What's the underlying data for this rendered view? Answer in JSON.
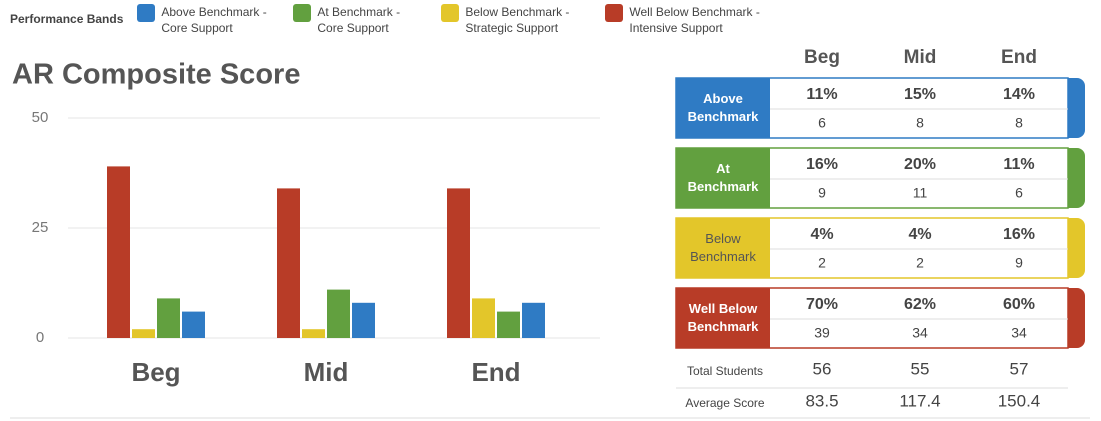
{
  "chart_data": {
    "type": "bar",
    "title": "AR Composite Score",
    "legend_title": "Performance Bands",
    "categories": [
      "Beg",
      "Mid",
      "End"
    ],
    "ylim": [
      0,
      50
    ],
    "yticks": [
      0,
      25,
      50
    ],
    "grid": true,
    "series": [
      {
        "name": "Above Benchmark - Core Support",
        "color": "#2f7bc4",
        "values": [
          6,
          8,
          8
        ]
      },
      {
        "name": "At Benchmark - Core Support",
        "color": "#62a03f",
        "values": [
          9,
          11,
          6
        ]
      },
      {
        "name": "Below Benchmark - Strategic Support",
        "color": "#e3c62a",
        "values": [
          2,
          2,
          9
        ]
      },
      {
        "name": "Well Below Benchmark - Intensive Support",
        "color": "#b83c27",
        "values": [
          39,
          34,
          34
        ]
      }
    ]
  },
  "table": {
    "rows": [
      {
        "label": "Above Benchmark",
        "percents": [
          "11%",
          "15%",
          "14%"
        ]
      },
      {
        "label": "At Benchmark",
        "percents": [
          "16%",
          "20%",
          "11%"
        ]
      },
      {
        "label": "Below Benchmark",
        "percents": [
          "4%",
          "4%",
          "16%"
        ]
      },
      {
        "label": "Well Below Benchmark",
        "percents": [
          "70%",
          "62%",
          "60%"
        ]
      }
    ],
    "total_students": {
      "label": "Total Students",
      "values": [
        56,
        55,
        57
      ]
    },
    "average_score": {
      "label": "Average Score",
      "values": [
        83.5,
        117.4,
        150.4
      ]
    }
  }
}
